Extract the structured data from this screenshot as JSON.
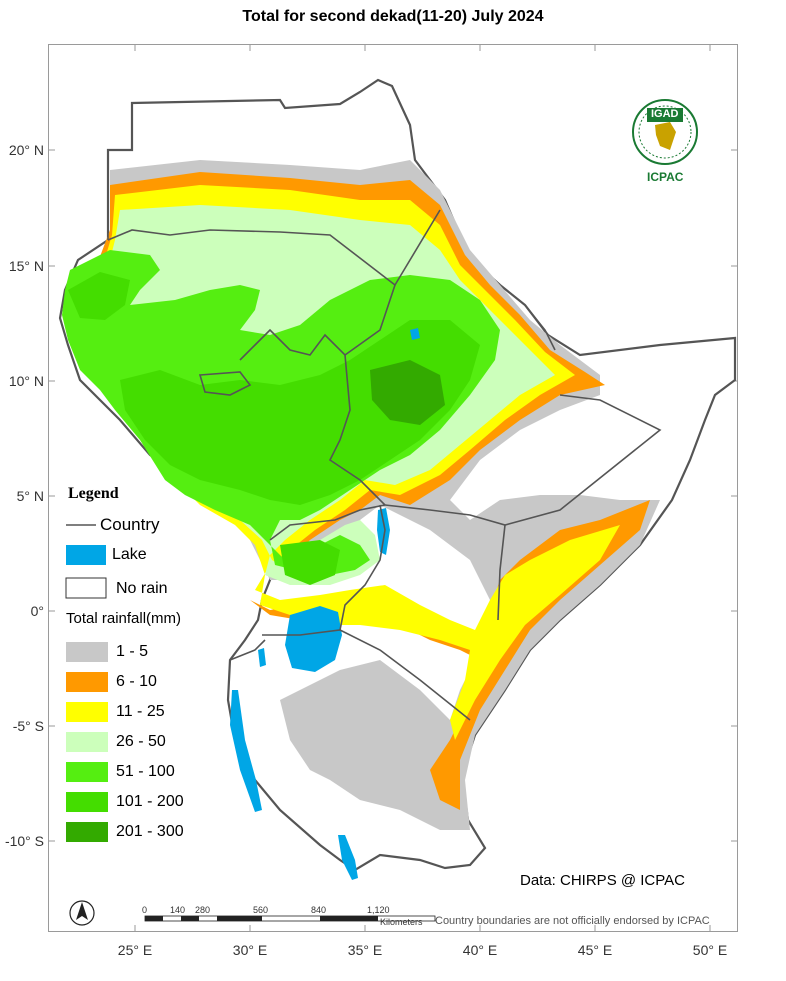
{
  "title": "Total  for second dekad(11-20) July 2024",
  "lat_labels": [
    "20° N",
    "15° N",
    "10° N",
    "5° N",
    "0°",
    "-5° S",
    "-10° S"
  ],
  "lon_labels": [
    "25° E",
    "30° E",
    "35° E",
    "40° E",
    "45° E",
    "50° E"
  ],
  "legend": {
    "heading": "Legend",
    "country": "Country",
    "lake": "Lake",
    "no_rain": "No rain",
    "total_title": "Total rainfall(mm)",
    "classes": [
      {
        "label": "1 - 5",
        "color": "#c8c8c8"
      },
      {
        "label": "6 - 10",
        "color": "#ff9900"
      },
      {
        "label": "11 - 25",
        "color": "#ffff00"
      },
      {
        "label": "26 - 50",
        "color": "#ccffbb"
      },
      {
        "label": "51 - 100",
        "color": "#55ee11"
      },
      {
        "label": "101 - 200",
        "color": "#44dd00"
      },
      {
        "label": "201 - 300",
        "color": "#33aa00"
      }
    ],
    "lake_color": "#00a6e6"
  },
  "logo": {
    "top_text": "IGAD",
    "bottom_text": "ICPAC"
  },
  "credit": "Data: CHIRPS @ ICPAC",
  "disclaimer": "Country boundaries are not officially endorsed by ICPAC",
  "scale": {
    "ticks": [
      "0",
      "140",
      "280",
      "560",
      "840",
      "1,120"
    ],
    "unit": "Kilometers"
  },
  "north_arrow": "N"
}
